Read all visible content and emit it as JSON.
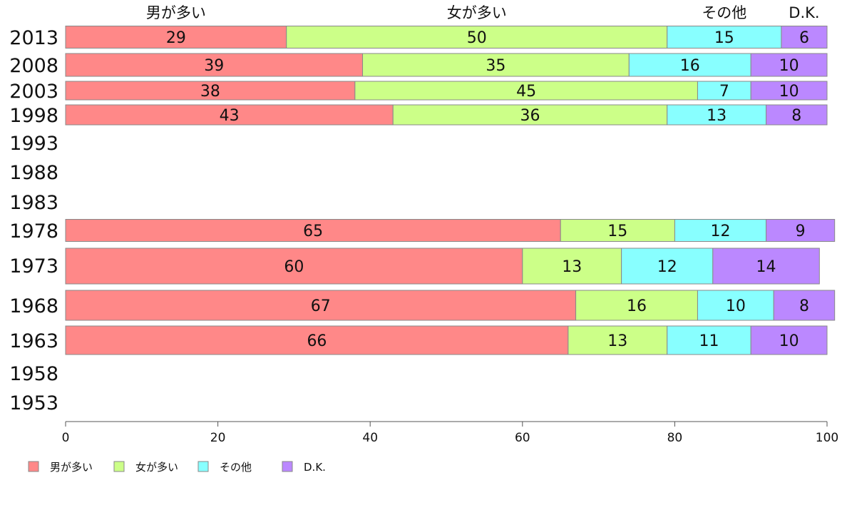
{
  "chart_data": {
    "type": "bar",
    "stacked": true,
    "orientation": "horizontal",
    "title": "",
    "xlabel": "",
    "ylabel": "",
    "xlim": [
      0,
      100
    ],
    "x_ticks": [
      "0",
      "20",
      "40",
      "60",
      "80",
      "100"
    ],
    "grid": false,
    "legend_position": "bottom-left",
    "categories": [
      "2013",
      "2008",
      "2003",
      "1998",
      "1993",
      "1988",
      "1983",
      "1978",
      "1973",
      "1968",
      "1963",
      "1958",
      "1953"
    ],
    "series": [
      {
        "name": "男が多い",
        "color": "#ff8888",
        "values": [
          29,
          39,
          38,
          43,
          null,
          null,
          null,
          65,
          60,
          67,
          66,
          null,
          null
        ]
      },
      {
        "name": "女が多い",
        "color": "#ccff88",
        "values": [
          50,
          35,
          45,
          36,
          null,
          null,
          null,
          15,
          13,
          16,
          13,
          null,
          null
        ]
      },
      {
        "name": "その他",
        "color": "#88ffff",
        "values": [
          15,
          16,
          7,
          13,
          null,
          null,
          null,
          12,
          12,
          10,
          11,
          null,
          null
        ]
      },
      {
        "name": "D.K.",
        "color": "#bb88ff",
        "values": [
          6,
          10,
          10,
          8,
          null,
          null,
          null,
          9,
          14,
          8,
          10,
          null,
          null
        ]
      }
    ]
  }
}
